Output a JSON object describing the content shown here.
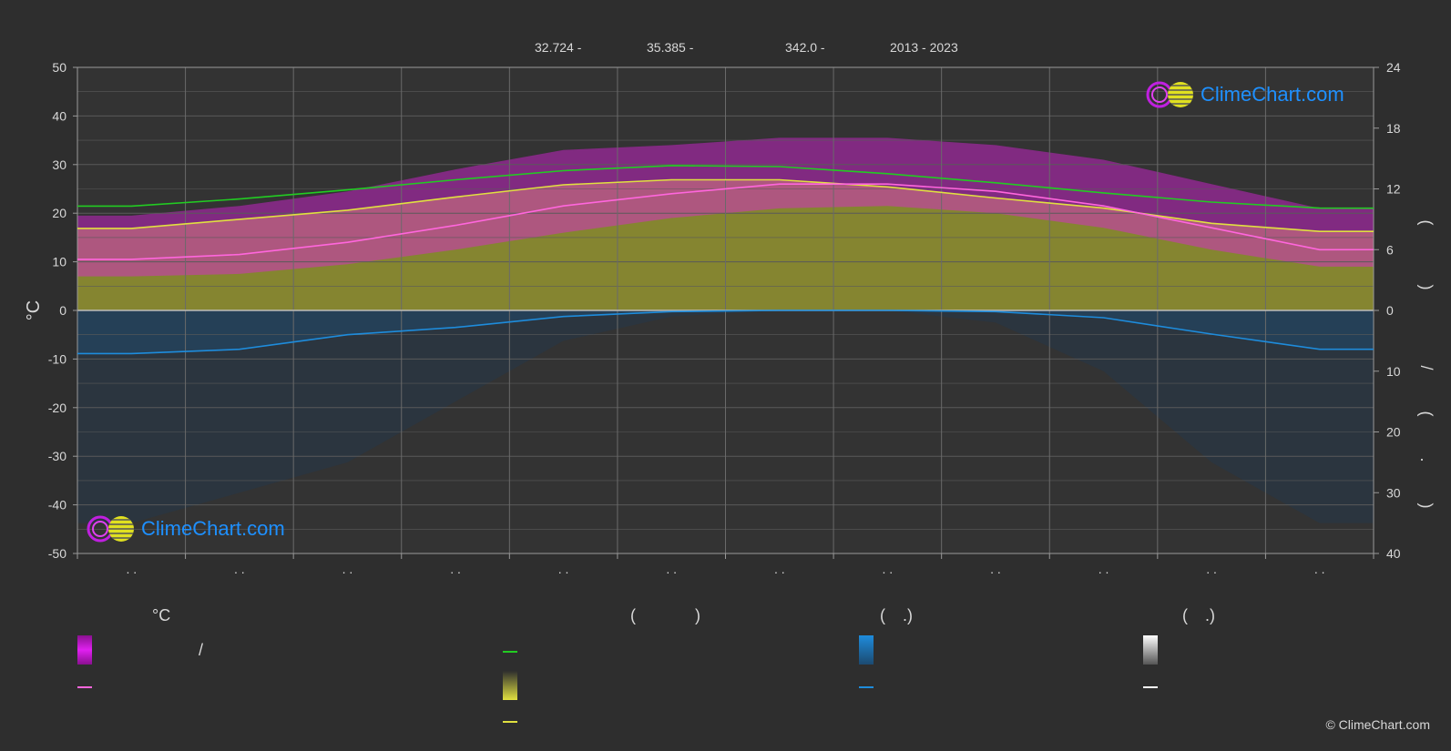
{
  "header": {
    "lat": "32.724 -",
    "lon": "35.385 -",
    "elev": "342.0 -",
    "years": "2013 - 2023"
  },
  "logo": {
    "text": "ClimeChart.com"
  },
  "copyright": "© ClimeChart.com",
  "axis": {
    "left_unit": "°C",
    "right_top_unit": "( )",
    "right_bottom_unit": "/ ( . )",
    "month_labels": [
      ". .",
      ". .",
      ". .",
      ". .",
      ". .",
      ". .",
      ". .",
      ". .",
      ". .",
      ". .",
      ". .",
      ". ."
    ]
  },
  "legend": {
    "col1_title": "°C",
    "col2_title": "( )",
    "col3_title": "( .)",
    "col4_title": "( .)",
    "slash": "/"
  },
  "colors": {
    "daylight": "#22cc22",
    "sunshine": "#e0e040",
    "temp_max_mean": "#ff66dd",
    "precip": "#1e8cdc",
    "snow": "#ffffff",
    "temp_band": "#e020e0",
    "background": "#2e2e2e"
  },
  "chart_data": {
    "type": "line",
    "x": [
      0.5,
      1.5,
      2.5,
      3.5,
      4.5,
      5.5,
      6.5,
      7.5,
      8.5,
      9.5,
      10.5,
      11.5
    ],
    "xlim": [
      0,
      12
    ],
    "y_left": {
      "unit": "°C",
      "ylim": [
        -50,
        50
      ],
      "ticks": [
        50,
        40,
        30,
        20,
        10,
        0,
        -10,
        -20,
        -30,
        -40,
        -50
      ]
    },
    "y_right_top": {
      "ylim": [
        0,
        24
      ],
      "ticks": [
        24,
        18,
        12,
        6,
        0
      ]
    },
    "y_right_bottom": {
      "ylim": [
        0,
        40
      ],
      "ticks": [
        0,
        10,
        20,
        30,
        40
      ]
    },
    "grid": true,
    "series": [
      {
        "key": "daylight",
        "axis": "hours",
        "values": [
          10.3,
          11.0,
          11.9,
          12.9,
          13.8,
          14.3,
          14.2,
          13.5,
          12.6,
          11.6,
          10.7,
          10.1
        ]
      },
      {
        "key": "sunshine",
        "axis": "hours",
        "values": [
          8.1,
          9.0,
          9.9,
          11.2,
          12.4,
          12.9,
          12.9,
          12.2,
          11.1,
          10.1,
          8.6,
          7.8
        ]
      },
      {
        "key": "temp_mean",
        "axis": "celsius",
        "values": [
          10.5,
          11.5,
          14.0,
          17.5,
          21.5,
          24.0,
          26.0,
          26.0,
          24.5,
          21.5,
          17.0,
          12.5
        ]
      },
      {
        "key": "precip_mean",
        "axis": "mm",
        "values": [
          7.1,
          6.4,
          4.0,
          2.8,
          1.0,
          0.2,
          0.0,
          0.0,
          0.2,
          1.2,
          3.9,
          6.4
        ]
      }
    ],
    "bands": {
      "temp_max_top": [
        19.5,
        21.5,
        24.5,
        29.0,
        33.0,
        34.0,
        35.5,
        35.5,
        34.0,
        31.0,
        26.0,
        21.0
      ],
      "temp_min_bottom": [
        7.0,
        7.5,
        9.5,
        12.5,
        16.0,
        19.0,
        21.0,
        21.5,
        20.0,
        17.0,
        12.5,
        9.0
      ],
      "precip_extreme_mm": [
        35,
        30,
        25,
        15,
        5,
        1,
        0,
        0,
        2,
        10,
        25,
        35
      ]
    }
  }
}
